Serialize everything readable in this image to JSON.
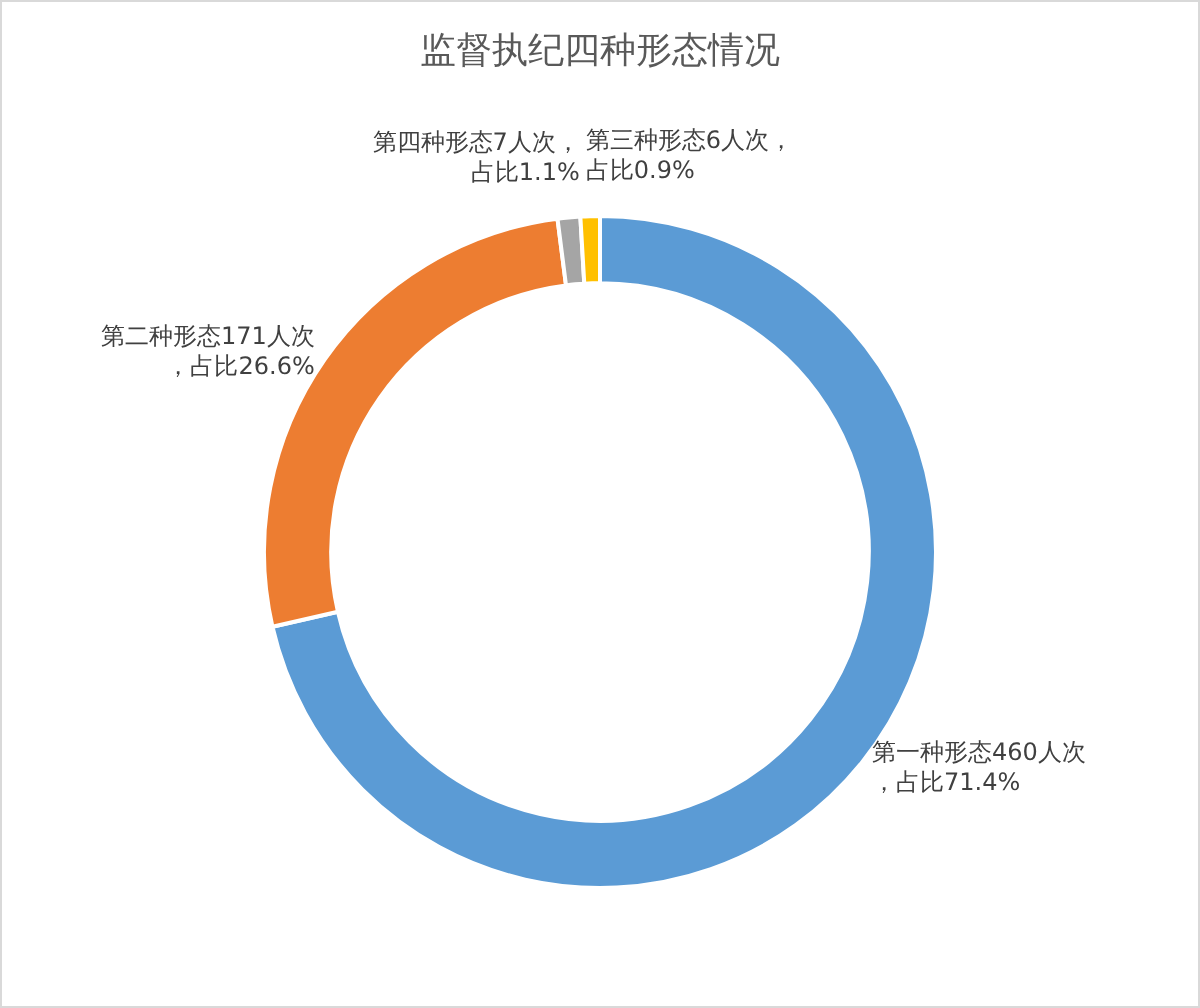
{
  "chart_data": {
    "type": "donut",
    "title": "监督执纪四种形态情况",
    "categories": [
      "第一种形态",
      "第二种形态",
      "第四种形态",
      "第三种形态"
    ],
    "values": [
      460,
      171,
      7,
      6
    ],
    "value_labels": [
      "460人次，占比71.4%",
      "171人次，占比26.6%",
      "7人次，占比1.1%",
      "6人次，占比0.9%"
    ],
    "colors": [
      "#5b9bd5",
      "#ed7d31",
      "#a5a5a5",
      "#ffc000"
    ],
    "legend": false
  }
}
